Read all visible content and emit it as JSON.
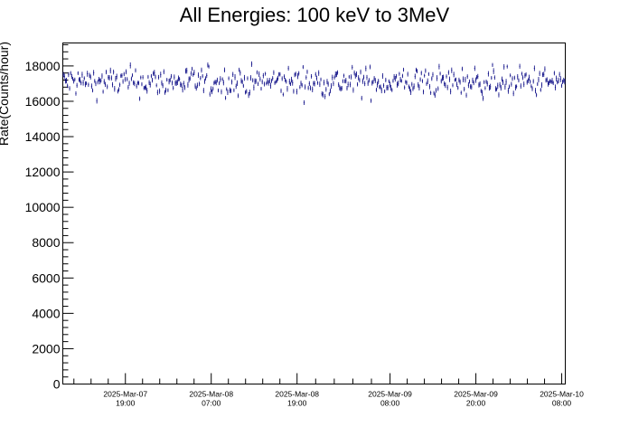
{
  "chart_data": {
    "type": "scatter",
    "title": "All Energies:  100 keV to 3MeV",
    "xlabel": "",
    "ylabel": "Rate(Counts/hour)",
    "ylim": [
      0,
      19300
    ],
    "yticks": [
      0,
      2000,
      4000,
      6000,
      8000,
      10000,
      12000,
      14000,
      16000,
      18000
    ],
    "ytick_labels": [
      "0",
      "2000",
      "4000",
      "6000",
      "8000",
      "10000",
      "12000",
      "14000",
      "16000",
      "18000"
    ],
    "xticks": [
      {
        "date": "2025-Mar-07",
        "time": "19:00"
      },
      {
        "date": "2025-Mar-08",
        "time": "07:00"
      },
      {
        "date": "2025-Mar-08",
        "time": "19:00"
      },
      {
        "date": "2025-Mar-09",
        "time": "08:00"
      },
      {
        "date": "2025-Mar-09",
        "time": "20:00"
      },
      {
        "date": "2025-Mar-10",
        "time": "08:00"
      }
    ],
    "xlim": [
      "2025-Mar-07 10:15",
      "2025-Mar-10 08:30"
    ],
    "series": [
      {
        "name": "",
        "color": "#000080",
        "mean": 17100,
        "spread": 450,
        "error": 130,
        "n_points": 480
      }
    ],
    "grid": false,
    "legend": "none"
  }
}
